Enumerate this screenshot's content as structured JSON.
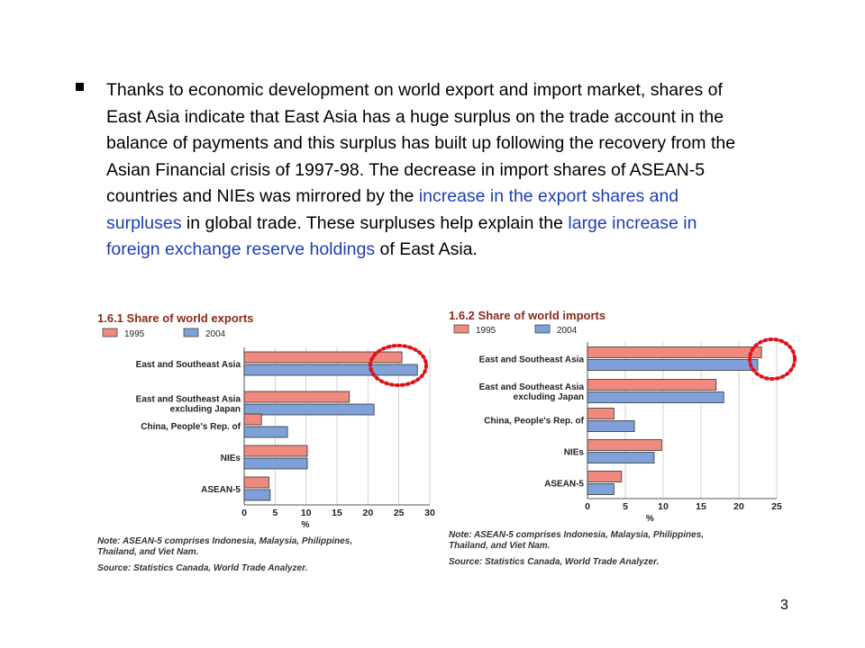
{
  "slide": {
    "bullet_icon": "square-bullet",
    "paragraph": {
      "part1": "Thanks to economic development on world export and import market, shares of East Asia indicate that East Asia has a huge surplus on the trade account in the balance of payments and this surplus has built up following the recovery from the Asian Financial crisis of 1997-98. The decrease in import shares of ASEAN-5 countries and NIEs was mirrored by the ",
      "highlight1": "increase in the export shares and surpluses",
      "part2": " in global trade. These surpluses help explain the ",
      "highlight2": "large increase in foreign exchange reserve holdings",
      "part3": " of East Asia."
    },
    "page_number": "3",
    "colors": {
      "text": "#000000",
      "highlight": "#1f3fb2",
      "bar_1995": "#f08a7e",
      "bar_2004": "#7fa0d8",
      "circle": "#e3101a"
    }
  },
  "chart_data": [
    {
      "type": "bar",
      "orientation": "horizontal",
      "number": "1.6.1",
      "title": "Share of world exports",
      "categories": [
        "East and Southeast Asia",
        "East and Southeast Asia excluding Japan",
        "China, People's Rep. of",
        "NIEs",
        "ASEAN-5"
      ],
      "category_lines": [
        [
          "East and Southeast Asia"
        ],
        [
          "East and Southeast Asia",
          "excluding Japan"
        ],
        [
          "China, People's Rep. of"
        ],
        [
          "NIEs"
        ],
        [
          "ASEAN-5"
        ]
      ],
      "series": [
        {
          "name": "1995",
          "values": [
            25.5,
            17,
            2.8,
            10.2,
            4
          ]
        },
        {
          "name": "2004",
          "values": [
            28,
            21,
            7,
            10.2,
            4.2
          ]
        }
      ],
      "xlim": [
        0,
        30
      ],
      "xticks": [
        "0",
        "5",
        "10",
        "15",
        "20",
        "25",
        "30"
      ],
      "xlabel": "%",
      "legend_position": "top-left",
      "annotation": "red dotted circle around East and Southeast Asia bar ends",
      "note": "Note: ASEAN-5 comprises Indonesia, Malaysia, Philippines, Thailand, and Viet Nam.",
      "note_lines": [
        "Note: ASEAN-5 comprises Indonesia, Malaysia, Philippines,",
        "Thailand, and Viet Nam."
      ],
      "source": "Source: Statistics Canada, World Trade Analyzer."
    },
    {
      "type": "bar",
      "orientation": "horizontal",
      "number": "1.6.2",
      "title": "Share of world imports",
      "categories": [
        "East and Southeast Asia",
        "East and Southeast Asia excluding Japan",
        "China, People's Rep. of",
        "NIEs",
        "ASEAN-5"
      ],
      "category_lines": [
        [
          "East and Southeast Asia"
        ],
        [
          "East and Southeast Asia",
          "excluding Japan"
        ],
        [
          "China, People's Rep. of"
        ],
        [
          "NIEs"
        ],
        [
          "ASEAN-5"
        ]
      ],
      "series": [
        {
          "name": "1995",
          "values": [
            23,
            17,
            3.5,
            9.8,
            4.5
          ]
        },
        {
          "name": "2004",
          "values": [
            22.5,
            18,
            6.2,
            8.8,
            3.5
          ]
        }
      ],
      "xlim": [
        0,
        25
      ],
      "xticks": [
        "0",
        "5",
        "10",
        "15",
        "20",
        "25"
      ],
      "xlabel": "%",
      "legend_position": "top-left",
      "annotation": "red dotted circle around East and Southeast Asia bar ends",
      "note": "Note: ASEAN-5 comprises Indonesia, Malaysia, Philippines, Thailand, and Viet Nam.",
      "note_lines": [
        "Note: ASEAN-5 comprises Indonesia, Malaysia, Philippines,",
        "Thailand, and Viet Nam."
      ],
      "source": "Source: Statistics Canada, World Trade Analyzer."
    }
  ]
}
